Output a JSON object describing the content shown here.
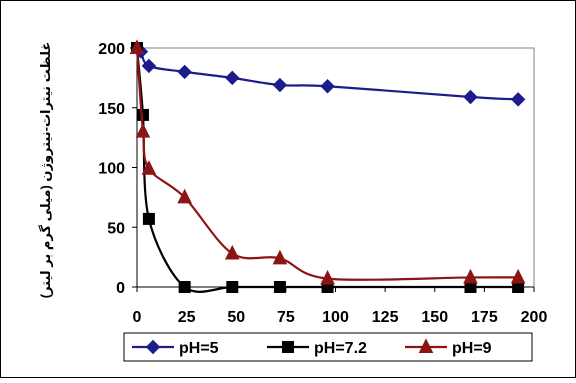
{
  "chart_data": {
    "type": "line",
    "ylabel": "غلظت نیترات-نیتروژن (میلی گرم بر لیتر)",
    "xlabel": "",
    "xlim": [
      0,
      200
    ],
    "ylim": [
      0,
      200
    ],
    "x_ticks": [
      0,
      25,
      50,
      75,
      100,
      125,
      150,
      175,
      200
    ],
    "y_ticks": [
      0,
      50,
      100,
      150,
      200
    ],
    "grid": false,
    "legend_position": "bottom",
    "series": [
      {
        "name": "pH=5",
        "color": "#1c1c8c",
        "marker": "diamond",
        "x": [
          0,
          2,
          6,
          24,
          48,
          72,
          96,
          168,
          192
        ],
        "y": [
          200,
          197,
          185,
          180,
          175,
          169,
          168,
          159,
          157
        ]
      },
      {
        "name": "pH=7.2",
        "color": "#000000",
        "marker": "square",
        "x": [
          0,
          3,
          6,
          24,
          48,
          72,
          96,
          168,
          192
        ],
        "y": [
          200,
          144,
          57,
          0,
          0,
          0,
          0,
          0,
          0
        ]
      },
      {
        "name": "pH=9",
        "color": "#8c1414",
        "marker": "triangle",
        "x": [
          0,
          3,
          6,
          24,
          48,
          72,
          96,
          168,
          192
        ],
        "y": [
          200,
          130,
          99,
          75,
          28,
          24,
          7,
          8,
          8
        ]
      }
    ]
  }
}
